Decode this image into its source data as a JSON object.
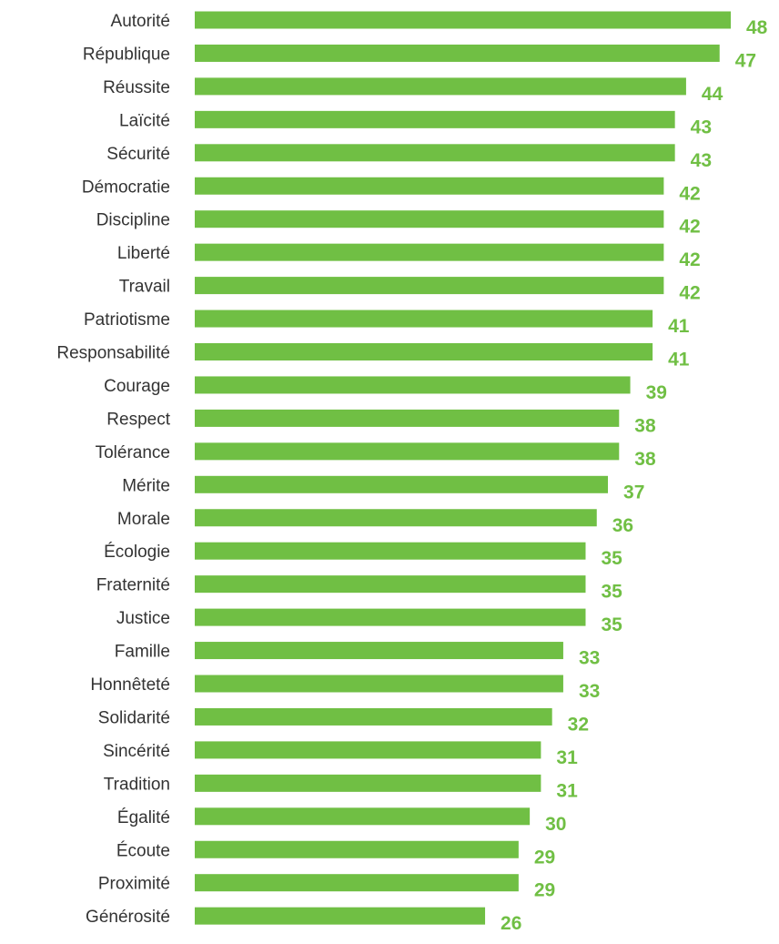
{
  "chart_data": {
    "type": "bar",
    "orientation": "horizontal",
    "categories": [
      "Autorité",
      "République",
      "Réussite",
      "Laïcité",
      "Sécurité",
      "Démocratie",
      "Discipline",
      "Liberté",
      "Travail",
      "Patriotisme",
      "Responsabilité",
      "Courage",
      "Respect",
      "Tolérance",
      "Mérite",
      "Morale",
      "Écologie",
      "Fraternité",
      "Justice",
      "Famille",
      "Honnêteté",
      "Solidarité",
      "Sincérité",
      "Tradition",
      "Égalité",
      "Écoute",
      "Proximité",
      "Générosité"
    ],
    "values": [
      48,
      47,
      44,
      43,
      43,
      42,
      42,
      42,
      42,
      41,
      41,
      39,
      38,
      38,
      37,
      36,
      35,
      35,
      35,
      33,
      33,
      32,
      31,
      31,
      30,
      29,
      29,
      26
    ],
    "xlim": [
      0,
      48
    ],
    "grid": false,
    "legend": "none",
    "data_labels": true,
    "colors": {
      "bar": "#70bf44",
      "value_label": "#70bf44",
      "category_label": "#333333"
    }
  }
}
